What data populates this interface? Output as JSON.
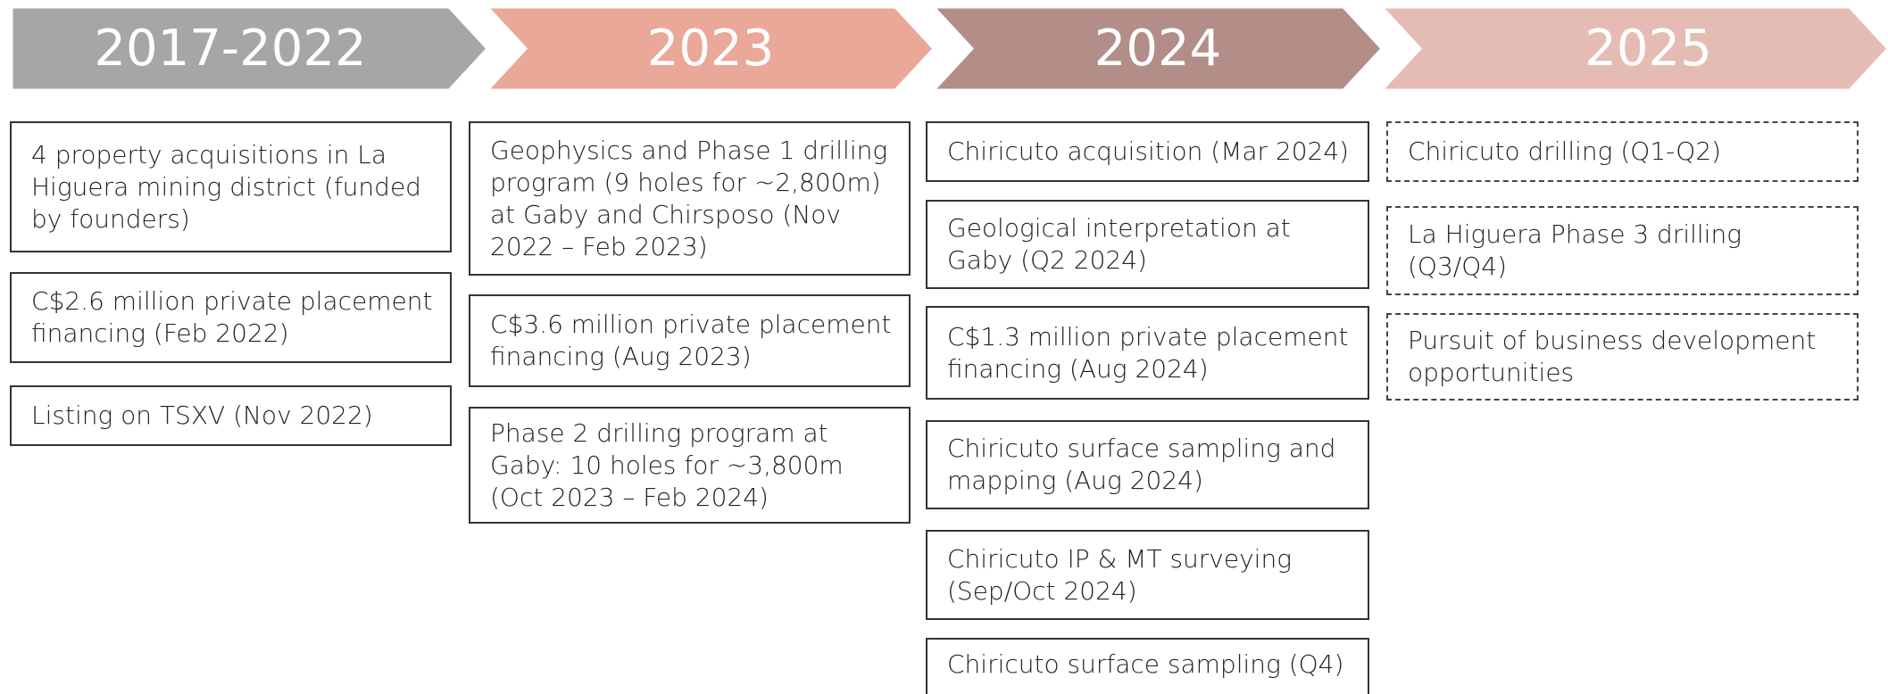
{
  "phases": [
    {
      "label": "2017-2022",
      "items": [
        "4 property acquisitions in La Higuera mining district (funded by founders)",
        "C$2.6 million private placement financing (Feb 2022)",
        "Listing on TSXV (Nov 2022)"
      ]
    },
    {
      "label": "2023",
      "items": [
        "Geophysics and Phase 1 drilling program (9 holes for ~2,800m) at Gaby and Chirsposo (Nov 2022 – Feb 2023)",
        "C$3.6 million private placement financing (Aug 2023)",
        "Phase 2 drilling program at Gaby: 10 holes for ~3,800m (Oct 2023 – Feb 2024)"
      ]
    },
    {
      "label": "2024",
      "items": [
        "Chiricuto acquisition (Mar 2024)",
        "Geological interpretation at Gaby (Q2 2024)",
        "C$1.3 million private placement financing (Aug 2024)",
        "Chiricuto surface sampling and mapping (Aug 2024)",
        "Chiricuto IP & MT surveying (Sep/Oct 2024)",
        "Chiricuto surface sampling (Q4)"
      ]
    },
    {
      "label": "2025",
      "items": [
        "Chiricuto drilling (Q1-Q2)",
        "La Higuera Phase 3 drilling (Q3/Q4)",
        "Pursuit of business development opportunities"
      ]
    }
  ]
}
